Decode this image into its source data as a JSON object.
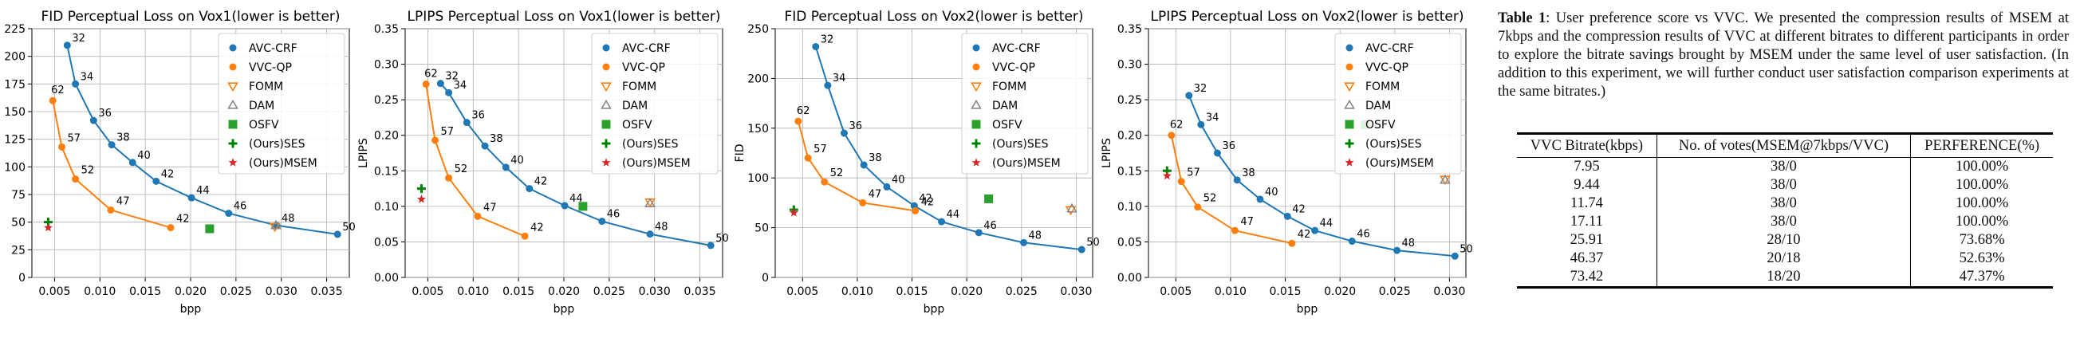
{
  "chart_data": [
    {
      "type": "line",
      "title": "FID Perceptual Loss on Vox1(lower is better)",
      "xlabel": "bpp",
      "ylabel": "FID",
      "xlim": [
        0.0025,
        0.0375
      ],
      "ylim": [
        0,
        225
      ],
      "xticks": [
        0.005,
        0.01,
        0.015,
        0.02,
        0.025,
        0.03,
        0.035
      ],
      "yticks": [
        0,
        25,
        50,
        75,
        100,
        125,
        150,
        175,
        200,
        225
      ],
      "legend_position": "top-right",
      "series": [
        {
          "name": "AVC-CRF",
          "color": "#1f77b4",
          "marker": "circle",
          "line": true,
          "x": [
            0.0064,
            0.0073,
            0.0093,
            0.0113,
            0.0136,
            0.0162,
            0.0201,
            0.0242,
            0.0295,
            0.0362
          ],
          "y": [
            210,
            175,
            142,
            120,
            104,
            87,
            72,
            58,
            47,
            39
          ],
          "labels": [
            "32",
            "34",
            "36",
            "38",
            "40",
            "42",
            "44",
            "46",
            "48",
            "50"
          ]
        },
        {
          "name": "VVC-QP",
          "color": "#ff7f0e",
          "marker": "circle",
          "line": true,
          "x": [
            0.0048,
            0.0058,
            0.0073,
            0.0112,
            0.0178
          ],
          "y": [
            160,
            118,
            89,
            61,
            45
          ],
          "labels": [
            "62",
            "57",
            "52",
            "47",
            "42"
          ]
        },
        {
          "name": "FOMM",
          "color": "#ff7f0e",
          "marker": "tri-down",
          "line": false,
          "x": [
            0.0293
          ],
          "y": [
            46
          ]
        },
        {
          "name": "DAM",
          "color": "#888888",
          "marker": "tri-up",
          "line": false,
          "x": [
            0.0294
          ],
          "y": [
            47
          ]
        },
        {
          "name": "OSFV",
          "color": "#2ca02c",
          "marker": "square",
          "line": false,
          "x": [
            0.0221
          ],
          "y": [
            44
          ]
        },
        {
          "name": "(Ours)SES",
          "color": "#008000",
          "marker": "plus",
          "line": false,
          "x": [
            0.0043
          ],
          "y": [
            50
          ]
        },
        {
          "name": "(Ours)MSEM",
          "color": "#d62728",
          "marker": "star",
          "line": false,
          "x": [
            0.0043
          ],
          "y": [
            45
          ]
        }
      ]
    },
    {
      "type": "line",
      "title": "LPIPS Perceptual Loss on Vox1(lower is better)",
      "xlabel": "bpp",
      "ylabel": "LPIPS",
      "xlim": [
        0.0025,
        0.0375
      ],
      "ylim": [
        0,
        0.35
      ],
      "xticks": [
        0.005,
        0.01,
        0.015,
        0.02,
        0.025,
        0.03,
        0.035
      ],
      "yticks": [
        0.0,
        0.05,
        0.1,
        0.15,
        0.2,
        0.25,
        0.3,
        0.35
      ],
      "legend_position": "top-right",
      "series": [
        {
          "name": "AVC-CRF",
          "color": "#1f77b4",
          "marker": "circle",
          "line": true,
          "x": [
            0.0064,
            0.0073,
            0.0093,
            0.0113,
            0.0136,
            0.0162,
            0.0201,
            0.0242,
            0.0295,
            0.0362
          ],
          "y": [
            0.273,
            0.26,
            0.218,
            0.185,
            0.155,
            0.125,
            0.101,
            0.079,
            0.061,
            0.045
          ],
          "labels": [
            "32",
            "34",
            "36",
            "38",
            "40",
            "42",
            "44",
            "46",
            "48",
            "50"
          ]
        },
        {
          "name": "VVC-QP",
          "color": "#ff7f0e",
          "marker": "circle",
          "line": true,
          "x": [
            0.0048,
            0.0058,
            0.0073,
            0.0105,
            0.0157
          ],
          "y": [
            0.272,
            0.193,
            0.14,
            0.086,
            0.058
          ],
          "labels": [
            "62",
            "57",
            "52",
            "47",
            "42"
          ]
        },
        {
          "name": "FOMM",
          "color": "#ff7f0e",
          "marker": "tri-down",
          "line": false,
          "x": [
            0.0295
          ],
          "y": [
            0.106
          ]
        },
        {
          "name": "DAM",
          "color": "#888888",
          "marker": "tri-up",
          "line": false,
          "x": [
            0.0295
          ],
          "y": [
            0.104
          ]
        },
        {
          "name": "OSFV",
          "color": "#2ca02c",
          "marker": "square",
          "line": false,
          "x": [
            0.0221
          ],
          "y": [
            0.1
          ]
        },
        {
          "name": "(Ours)SES",
          "color": "#008000",
          "marker": "plus",
          "line": false,
          "x": [
            0.0043
          ],
          "y": [
            0.125
          ]
        },
        {
          "name": "(Ours)MSEM",
          "color": "#d62728",
          "marker": "star",
          "line": false,
          "x": [
            0.0043
          ],
          "y": [
            0.11
          ]
        }
      ]
    },
    {
      "type": "line",
      "title": "FID Perceptual Loss on Vox2(lower is better)",
      "xlabel": "bpp",
      "ylabel": "FID",
      "xlim": [
        0.0025,
        0.0315
      ],
      "ylim": [
        0,
        250
      ],
      "xticks": [
        0.005,
        0.01,
        0.015,
        0.02,
        0.025,
        0.03
      ],
      "yticks": [
        0,
        50,
        100,
        150,
        200,
        250
      ],
      "legend_position": "top-right",
      "series": [
        {
          "name": "AVC-CRF",
          "color": "#1f77b4",
          "marker": "circle",
          "line": true,
          "x": [
            0.0062,
            0.0073,
            0.0088,
            0.0106,
            0.0127,
            0.0152,
            0.0177,
            0.0211,
            0.0252,
            0.0305
          ],
          "y": [
            232,
            193,
            145,
            113,
            91,
            72,
            56,
            45,
            35,
            28
          ],
          "labels": [
            "32",
            "34",
            "36",
            "38",
            "40",
            "42",
            "44",
            "46",
            "48",
            "50"
          ]
        },
        {
          "name": "VVC-QP",
          "color": "#ff7f0e",
          "marker": "circle",
          "line": true,
          "x": [
            0.0046,
            0.0055,
            0.007,
            0.0105,
            0.0153
          ],
          "y": [
            157,
            120,
            96,
            75,
            67
          ],
          "labels": [
            "62",
            "57",
            "52",
            "47",
            "42"
          ]
        },
        {
          "name": "FOMM",
          "color": "#ff7f0e",
          "marker": "tri-down",
          "line": false,
          "x": [
            0.0295
          ],
          "y": [
            68
          ]
        },
        {
          "name": "DAM",
          "color": "#888888",
          "marker": "tri-up",
          "line": false,
          "x": [
            0.0296
          ],
          "y": [
            69
          ]
        },
        {
          "name": "OSFV",
          "color": "#2ca02c",
          "marker": "square",
          "line": false,
          "x": [
            0.022
          ],
          "y": [
            79
          ]
        },
        {
          "name": "(Ours)SES",
          "color": "#008000",
          "marker": "plus",
          "line": false,
          "x": [
            0.0042
          ],
          "y": [
            68
          ]
        },
        {
          "name": "(Ours)MSEM",
          "color": "#d62728",
          "marker": "star",
          "line": false,
          "x": [
            0.0042
          ],
          "y": [
            65
          ]
        }
      ]
    },
    {
      "type": "line",
      "title": "LPIPS Perceptual Loss on Vox2(lower is better)",
      "xlabel": "bpp",
      "ylabel": "LPIPS",
      "xlim": [
        0.0025,
        0.0315
      ],
      "ylim": [
        0,
        0.35
      ],
      "xticks": [
        0.005,
        0.01,
        0.015,
        0.02,
        0.025,
        0.03
      ],
      "yticks": [
        0.0,
        0.05,
        0.1,
        0.15,
        0.2,
        0.25,
        0.3,
        0.35
      ],
      "legend_position": "top-right",
      "series": [
        {
          "name": "AVC-CRF",
          "color": "#1f77b4",
          "marker": "circle",
          "line": true,
          "x": [
            0.0062,
            0.0073,
            0.0088,
            0.0106,
            0.0127,
            0.0152,
            0.0177,
            0.0211,
            0.0252,
            0.0305
          ],
          "y": [
            0.256,
            0.215,
            0.175,
            0.137,
            0.11,
            0.086,
            0.066,
            0.051,
            0.038,
            0.03
          ],
          "labels": [
            "32",
            "34",
            "36",
            "38",
            "40",
            "42",
            "44",
            "46",
            "48",
            "50"
          ]
        },
        {
          "name": "VVC-QP",
          "color": "#ff7f0e",
          "marker": "circle",
          "line": true,
          "x": [
            0.0046,
            0.0055,
            0.007,
            0.0104,
            0.0156
          ],
          "y": [
            0.2,
            0.135,
            0.099,
            0.066,
            0.048
          ],
          "labels": [
            "62",
            "57",
            "52",
            "47",
            "42"
          ]
        },
        {
          "name": "FOMM",
          "color": "#ff7f0e",
          "marker": "tri-down",
          "line": false,
          "x": [
            0.0296
          ],
          "y": [
            0.138
          ]
        },
        {
          "name": "DAM",
          "color": "#888888",
          "marker": "tri-up",
          "line": false,
          "x": [
            0.0296
          ],
          "y": [
            0.137
          ]
        },
        {
          "name": "OSFV",
          "color": "#2ca02c",
          "marker": "square",
          "line": false,
          "x": [
            0.0223
          ],
          "y": [
            0.215
          ]
        },
        {
          "name": "(Ours)SES",
          "color": "#008000",
          "marker": "plus",
          "line": false,
          "x": [
            0.0042
          ],
          "y": [
            0.15
          ]
        },
        {
          "name": "(Ours)MSEM",
          "color": "#d62728",
          "marker": "star",
          "line": false,
          "x": [
            0.0042
          ],
          "y": [
            0.143
          ]
        }
      ]
    }
  ],
  "table": {
    "caption_label": "Table 1",
    "caption_text": ": User preference score vs VVC. We presented the compression results of MSEM at 7kbps and the compression results of VVC at different bitrates to different participants in order to explore the bitrate savings brought by MSEM under the same level of user satisfaction. (In addition to this experiment, we will further conduct user satisfaction comparison experiments at the same bitrates.)",
    "headers": [
      "VVC Bitrate(kbps)",
      "No. of votes(MSEM@7kbps/VVC)",
      "PERFERENCE(%)"
    ],
    "rows": [
      [
        "7.95",
        "38/0",
        "100.00%"
      ],
      [
        "9.44",
        "38/0",
        "100.00%"
      ],
      [
        "11.74",
        "38/0",
        "100.00%"
      ],
      [
        "17.11",
        "38/0",
        "100.00%"
      ],
      [
        "25.91",
        "28/10",
        "73.68%"
      ],
      [
        "46.37",
        "20/18",
        "52.63%"
      ],
      [
        "73.42",
        "18/20",
        "47.37%"
      ]
    ]
  }
}
